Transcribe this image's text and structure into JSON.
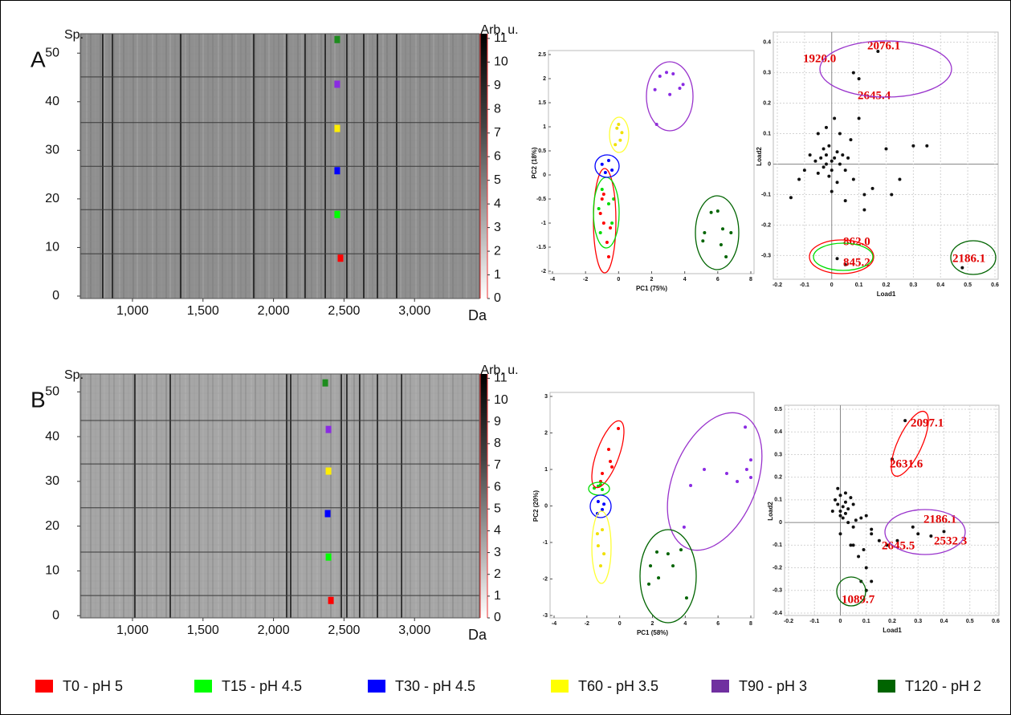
{
  "chart_data": [
    {
      "type": "gel",
      "panel_label": "A",
      "y_label": "Sp.",
      "x_label": "Da",
      "colorbar_label": "Arb. u.",
      "xlim": [
        630,
        3460
      ],
      "xticks": [
        {
          "value": 1000,
          "label": "1,000"
        },
        {
          "value": 1500,
          "label": "1,500"
        },
        {
          "value": 2000,
          "label": "2,000"
        },
        {
          "value": 2500,
          "label": "2,500"
        },
        {
          "value": 3000,
          "label": "3,000"
        }
      ],
      "ylim": [
        -0.5,
        54
      ],
      "yticks": [
        0,
        10,
        20,
        30,
        40,
        50
      ],
      "clim": [
        0,
        11.2
      ],
      "cticks": [
        0,
        1,
        2,
        3,
        4,
        5,
        6,
        7,
        8,
        9,
        10,
        11
      ],
      "peaks": [
        789,
        858,
        1342,
        1860,
        2093,
        2224,
        2367,
        2520,
        2640,
        2737,
        2873
      ],
      "separators": [
        45.1,
        35.7,
        26.7,
        17.8,
        8.7
      ],
      "markers": {
        "x": [
          2452,
          2452,
          2452,
          2452,
          2452,
          2475
        ],
        "y": [
          52.8,
          43.6,
          34.5,
          25.8,
          16.8,
          7.8
        ],
        "colors": [
          "#1e8c1e",
          "#8a2be2",
          "#ffee00",
          "#0000ff",
          "#00ff00",
          "#ff0000"
        ]
      }
    },
    {
      "type": "scatter",
      "x_label": "PC1 (75%)",
      "y_label": "PC2 (18%)",
      "xlim": [
        -4,
        8
      ],
      "xticks": [
        -4,
        -2,
        0,
        2,
        4,
        6,
        8
      ],
      "ylim": [
        -2,
        2.5
      ],
      "yticks": [
        -2,
        -1.5,
        -1,
        -0.5,
        0,
        0.5,
        1,
        1.5,
        2,
        2.5
      ],
      "series": [
        {
          "color": "#ff0000",
          "x": [
            -1.0,
            -1.1,
            -0.9,
            -0.7,
            -0.6,
            -0.9,
            -0.5
          ],
          "y": [
            -0.5,
            -0.8,
            -1.0,
            -1.4,
            -1.7,
            -0.4,
            -1.1
          ]
        },
        {
          "color": "#00dd00",
          "x": [
            -1.2,
            -1.0,
            -0.6,
            -0.4,
            -1.1,
            -0.3
          ],
          "y": [
            -0.7,
            -0.3,
            -0.6,
            -1.0,
            -1.2,
            -0.5
          ]
        },
        {
          "color": "#0000ff",
          "x": [
            -1.0,
            -0.6,
            -0.4,
            -0.8
          ],
          "y": [
            0.22,
            0.3,
            0.1,
            0.05
          ]
        },
        {
          "color": "#f0e000",
          "x": [
            -0.1,
            0.1,
            0.2,
            -0.2,
            0.0
          ],
          "y": [
            0.97,
            0.72,
            0.88,
            0.63,
            1.05
          ]
        },
        {
          "color": "#8a2be2",
          "x": [
            2.3,
            2.5,
            2.9,
            3.3,
            3.7,
            3.9,
            2.2,
            3.1
          ],
          "y": [
            1.05,
            2.05,
            2.13,
            2.1,
            1.8,
            1.88,
            1.77,
            1.67
          ]
        },
        {
          "color": "#006400",
          "x": [
            5.2,
            5.6,
            6.0,
            6.3,
            6.5,
            6.8,
            6.2,
            5.1
          ],
          "y": [
            -1.2,
            -0.78,
            -0.75,
            -1.12,
            -1.7,
            -1.2,
            -1.45,
            -1.37
          ]
        }
      ]
    },
    {
      "type": "scatter",
      "x_label": "Load1",
      "y_label": "Load2",
      "grid": true,
      "xlim": [
        -0.2,
        0.6
      ],
      "xticks": [
        -0.2,
        -0.1,
        0,
        0.1,
        0.2,
        0.3,
        0.4,
        0.5,
        0.6
      ],
      "ylim": [
        -0.37,
        0.42
      ],
      "yticks": [
        -0.3,
        -0.2,
        -0.1,
        0,
        0.1,
        0.2,
        0.3,
        0.4
      ],
      "series": [
        {
          "color": "#111111",
          "x": [
            -0.15,
            -0.12,
            -0.1,
            -0.08,
            -0.06,
            -0.05,
            -0.04,
            -0.03,
            -0.03,
            -0.02,
            -0.02,
            -0.01,
            -0.01,
            0,
            0,
            0.01,
            0.01,
            0.02,
            0.02,
            0.03,
            0.03,
            0.04,
            0.05,
            0.06,
            0.07,
            0.08,
            0.1,
            0.12,
            0.15,
            0.2,
            0.22,
            0.25,
            0.3,
            0.35,
            -0.02,
            0.0,
            0.05,
            0.1,
            0.17,
            0.08,
            0.02,
            0.05,
            0.48,
            0.12,
            -0.05
          ],
          "y": [
            -0.11,
            -0.05,
            -0.02,
            0.03,
            0.01,
            -0.03,
            0.02,
            0.05,
            -0.01,
            0.0,
            0.03,
            -0.04,
            0.06,
            0.01,
            -0.02,
            0.02,
            0.15,
            0.04,
            -0.06,
            0.0,
            0.1,
            0.03,
            -0.02,
            0.02,
            0.08,
            -0.05,
            0.15,
            -0.15,
            -0.08,
            0.05,
            -0.1,
            -0.05,
            0.06,
            0.06,
            0.12,
            -0.09,
            -0.12,
            0.28,
            0.37,
            0.3,
            -0.31,
            -0.33,
            -0.34,
            -0.1,
            0.1
          ]
        }
      ],
      "annotations": [
        "2076.1",
        "1920.0",
        "2645.4",
        "862.0",
        "845.2",
        "2186.1"
      ]
    },
    {
      "type": "gel",
      "panel_label": "B",
      "y_label": "Sp.",
      "x_label": "Da",
      "colorbar_label": "Arb. u.",
      "xlim": [
        630,
        3460
      ],
      "xticks": [
        {
          "value": 1000,
          "label": "1,000"
        },
        {
          "value": 1500,
          "label": "1,500"
        },
        {
          "value": 2000,
          "label": "2,000"
        },
        {
          "value": 2500,
          "label": "2,500"
        },
        {
          "value": 3000,
          "label": "3,000"
        }
      ],
      "ylim": [
        -0.5,
        54
      ],
      "yticks": [
        0,
        10,
        20,
        30,
        40,
        50
      ],
      "clim": [
        0,
        11.2
      ],
      "cticks": [
        0,
        1,
        2,
        3,
        4,
        5,
        6,
        7,
        8,
        9,
        10,
        11
      ],
      "peaks": [
        1017,
        1268,
        2093,
        2122,
        2481,
        2520,
        2611,
        2737,
        2908
      ],
      "separators": [
        43.6,
        33.9,
        24.1,
        14.2,
        4.5
      ],
      "markers": {
        "x": [
          2367,
          2390,
          2390,
          2384,
          2390,
          2407
        ],
        "y": [
          52.0,
          41.6,
          32.3,
          22.8,
          13.1,
          3.4
        ],
        "colors": [
          "#1e8c1e",
          "#8a2be2",
          "#ffee00",
          "#0000ff",
          "#00ff00",
          "#ff0000"
        ]
      }
    },
    {
      "type": "scatter",
      "x_label": "PC1 (58%)",
      "y_label": "PC2 (20%)",
      "xlim": [
        -4,
        8
      ],
      "xticks": [
        -4,
        -2,
        0,
        2,
        4,
        6,
        8
      ],
      "ylim": [
        -3,
        3
      ],
      "yticks": [
        -3,
        -2,
        -1,
        0,
        1,
        2,
        3
      ],
      "series": [
        {
          "color": "#ff0000",
          "x": [
            -0.08,
            -0.67,
            -0.57,
            -1.06,
            -0.47,
            -1.16
          ],
          "y": [
            2.12,
            1.55,
            1.22,
            0.89,
            1.07,
            0.67
          ]
        },
        {
          "color": "#00dd00",
          "x": [
            -1.55,
            -1.31,
            -1.06,
            -1.16
          ],
          "y": [
            0.49,
            0.54,
            0.45,
            0.58
          ]
        },
        {
          "color": "#0000ff",
          "x": [
            -1.31,
            -1.06,
            -1.36,
            -0.96
          ],
          "y": [
            0.12,
            -0.1,
            -0.21,
            0.05
          ]
        },
        {
          "color": "#f0e000",
          "x": [
            -1.06,
            -1.31,
            -0.96,
            -1.16,
            -1.36
          ],
          "y": [
            -0.65,
            -1.09,
            -1.31,
            -1.64,
            -0.76
          ]
        },
        {
          "color": "#8a2be2",
          "x": [
            3.93,
            4.33,
            5.16,
            6.53,
            7.75,
            8.0,
            7.66,
            7.17,
            8.0
          ],
          "y": [
            -0.58,
            0.56,
            1.0,
            0.89,
            1.0,
            0.78,
            2.16,
            0.67,
            1.26
          ]
        },
        {
          "color": "#006400",
          "x": [
            1.88,
            2.27,
            2.95,
            3.74,
            4.08,
            2.37,
            3.25,
            1.78
          ],
          "y": [
            -1.64,
            -1.26,
            -1.31,
            -1.2,
            -2.52,
            -1.97,
            -1.64,
            -2.14
          ]
        }
      ]
    },
    {
      "type": "scatter",
      "x_label": "Load1",
      "y_label": "Load2",
      "grid": true,
      "xlim": [
        -0.2,
        0.6
      ],
      "xticks": [
        -0.2,
        -0.1,
        0,
        0.1,
        0.2,
        0.3,
        0.4,
        0.5,
        0.6
      ],
      "ylim": [
        -0.4,
        0.5
      ],
      "yticks": [
        -0.4,
        -0.3,
        -0.2,
        -0.1,
        0,
        0.1,
        0.2,
        0.3,
        0.4,
        0.5
      ],
      "series": [
        {
          "color": "#111111",
          "x": [
            -0.02,
            -0.01,
            0,
            0,
            0.01,
            0.01,
            0.02,
            0.02,
            0.03,
            0.03,
            -0.01,
            0.0,
            0.04,
            0.05,
            0.06,
            0.08,
            0.1,
            0.12,
            0.15,
            0.05,
            0.07,
            0.09,
            0.1,
            0.12,
            0.2,
            0.25,
            0.28,
            0.3,
            0.35,
            0.4,
            0.22,
            0.18,
            0.08,
            0.1,
            0.12,
            0.05,
            0.0,
            -0.03,
            0.02,
            0.04
          ],
          "y": [
            0.1,
            0.08,
            0.12,
            0.05,
            0.07,
            0.02,
            0.09,
            0.04,
            0.06,
            0.0,
            0.15,
            0.03,
            0.11,
            -0.02,
            0.01,
            0.02,
            0.03,
            -0.05,
            -0.08,
            -0.1,
            -0.15,
            -0.12,
            -0.2,
            -0.03,
            0.28,
            0.45,
            -0.02,
            -0.05,
            -0.06,
            -0.04,
            -0.08,
            -0.1,
            -0.26,
            -0.3,
            -0.26,
            0.08,
            -0.05,
            0.05,
            0.13,
            -0.1
          ]
        }
      ],
      "annotations": [
        "2097.1",
        "2631.6",
        "2186.1",
        "2645.5",
        "2532.3",
        "1089.7"
      ]
    }
  ],
  "legend": [
    {
      "name": "T0 - pH 5",
      "color": "#ff0000"
    },
    {
      "name": "T15 - pH 4.5",
      "color": "#00ff00"
    },
    {
      "name": "T30 - pH 4.5",
      "color": "#0000ff"
    },
    {
      "name": "T60 - pH 3.5",
      "color": "#ffff00"
    },
    {
      "name": "T90 - pH 3",
      "color": "#7030a0"
    },
    {
      "name": "T120 - pH 2",
      "color": "#006400"
    }
  ]
}
